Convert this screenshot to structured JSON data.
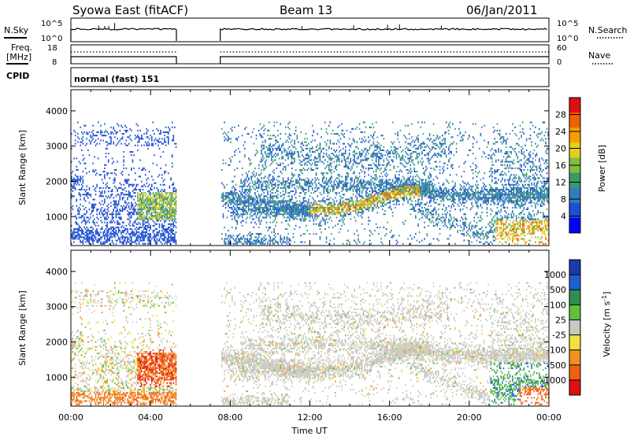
{
  "header": {
    "title": "Syowa East (fitACF)",
    "beam": "Beam 13",
    "date": "06/Jan/2011"
  },
  "noise_panel": {
    "left_label": "N.Sky",
    "left_ticks": [
      "10^5",
      "10^0"
    ],
    "right_label": "N.Search",
    "right_ticks": [
      "10^5",
      "10^0"
    ]
  },
  "freq_panel": {
    "left_label_1": "Freq.",
    "left_label_2": "[MHz]",
    "left_ticks": [
      "18",
      "8"
    ],
    "right_label": "Nave",
    "right_ticks": [
      "60",
      "0"
    ]
  },
  "cpid": {
    "label": "CPID",
    "value": "normal (fast) 151"
  },
  "colors": {
    "power_scale": [
      "#0000ff",
      "#1f4fd1",
      "#2f7fbf",
      "#3a9a6a",
      "#7fbf3f",
      "#e0d020",
      "#f5a000",
      "#f06000",
      "#e01010"
    ],
    "velocity_scale": [
      "#1a3ab0",
      "#1f5fd0",
      "#2f8f4f",
      "#60c040",
      "#c8c8c0",
      "#f0e040",
      "#f09020",
      "#f06010",
      "#e01010"
    ]
  },
  "chart_data": [
    {
      "type": "heatmap",
      "quantity": "power",
      "ylabel": "Slant Range [km]",
      "xlabel": "Time UT",
      "x_ticks": [
        "00:00",
        "04:00",
        "08:00",
        "12:00",
        "16:00",
        "20:00",
        "00:00"
      ],
      "y_ticks": [
        1000,
        2000,
        3000,
        4000
      ],
      "ylim": [
        180,
        4600
      ],
      "xlim_hours": [
        0,
        24
      ],
      "colorbar_label": "Power [dB]",
      "colorbar_ticks": [
        4,
        8,
        12,
        16,
        20,
        24,
        28
      ],
      "colorbar_range": [
        0,
        32
      ],
      "data_gap_hours": [
        5.3,
        7.5
      ]
    },
    {
      "type": "heatmap",
      "quantity": "velocity",
      "ylabel": "Slant Range [km]",
      "xlabel": "Time UT",
      "x_ticks": [
        "00:00",
        "04:00",
        "08:00",
        "12:00",
        "16:00",
        "20:00",
        "00:00"
      ],
      "y_ticks": [
        1000,
        2000,
        3000,
        4000
      ],
      "ylim": [
        180,
        4600
      ],
      "xlim_hours": [
        0,
        24
      ],
      "colorbar_label": "Velocity [m s-1]",
      "colorbar_ticks": [
        1000,
        500,
        100,
        25,
        -25,
        -100,
        -500,
        -1000
      ],
      "data_gap_hours": [
        5.3,
        7.5
      ]
    }
  ],
  "x_axis": {
    "label": "Time UT",
    "ticks": [
      "00:00",
      "04:00",
      "08:00",
      "12:00",
      "16:00",
      "20:00",
      "00:00"
    ]
  }
}
